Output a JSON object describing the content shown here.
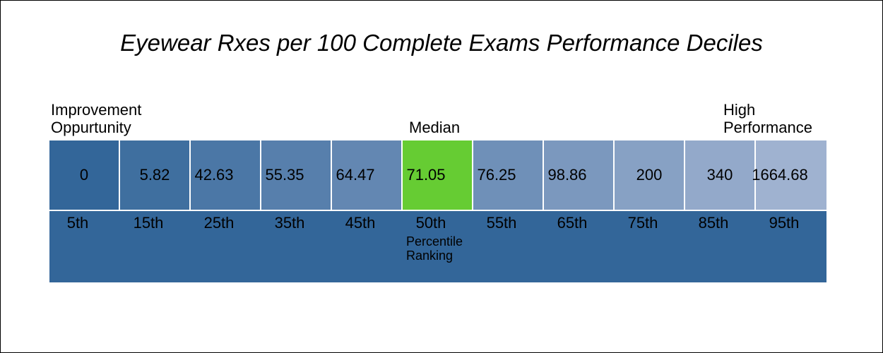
{
  "chart_data": {
    "type": "table",
    "title": "Eyewear Rxes per 100 Complete Exams Performance Deciles",
    "left_label": [
      "Improvement",
      "Oppurtunity"
    ],
    "center_label": "Median",
    "right_label": [
      "High",
      "Performance"
    ],
    "axis_label": [
      "Percentile",
      "Ranking"
    ],
    "percentiles": [
      "5th",
      "15th",
      "25th",
      "35th",
      "45th",
      "50th",
      "55th",
      "65th",
      "75th",
      "85th",
      "95th"
    ],
    "values": [
      "0",
      "5.82",
      "42.63",
      "55.35",
      "64.47",
      "71.05",
      "76.25",
      "98.86",
      "200",
      "340",
      "1664.68"
    ],
    "cell_colors": [
      "#336699",
      "#3f6f9f",
      "#4b77a6",
      "#577fac",
      "#6387b2",
      "#66cc33",
      "#6f90b8",
      "#7b98be",
      "#87a1c4",
      "#93a9ca",
      "#9fb2d0"
    ],
    "highlight_index": 5,
    "band_color": "#336699"
  }
}
